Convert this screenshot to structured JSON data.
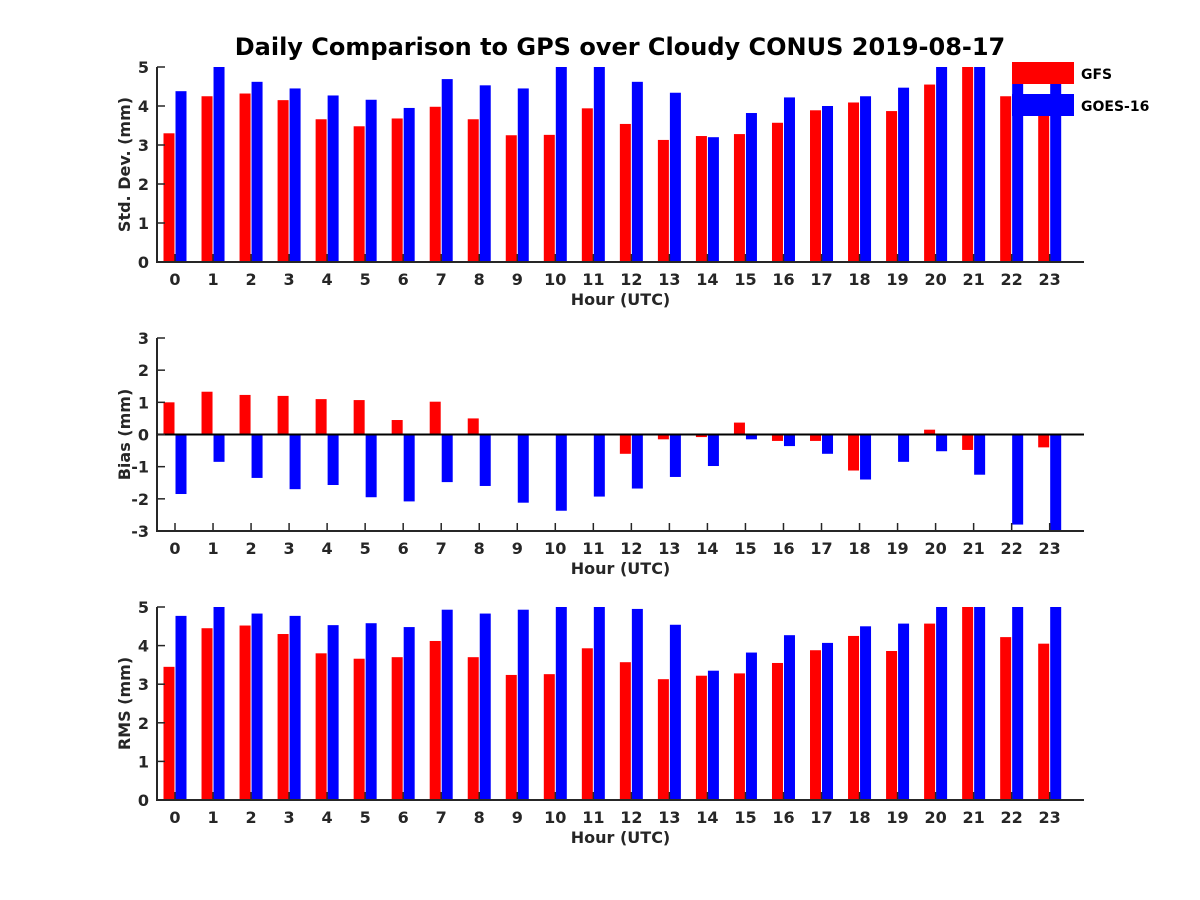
{
  "colors": {
    "GFS": "#ff0000",
    "GOES-16": "#0000ff",
    "axis": "#262626"
  },
  "chart_data": {
    "title": "Daily Comparison to GPS over Cloudy CONUS 2019-08-17",
    "legend": {
      "position": "top-right",
      "entries": [
        "GFS",
        "GOES-16"
      ]
    },
    "panels": [
      {
        "type": "bar",
        "xlabel": "Hour (UTC)",
        "ylabel": "Std. Dev. (mm)",
        "ylim": [
          0,
          5
        ],
        "yticks": [
          "0",
          "1",
          "2",
          "3",
          "4",
          "5"
        ],
        "categories": [
          "0",
          "1",
          "2",
          "3",
          "4",
          "5",
          "6",
          "7",
          "8",
          "9",
          "10",
          "11",
          "12",
          "13",
          "14",
          "15",
          "16",
          "17",
          "18",
          "19",
          "20",
          "21",
          "22",
          "23"
        ],
        "series": [
          {
            "name": "GFS",
            "values": [
              3.3,
              4.25,
              4.32,
              4.15,
              3.66,
              3.48,
              3.68,
              3.98,
              3.66,
              3.25,
              3.26,
              3.94,
              3.54,
              3.13,
              3.23,
              3.28,
              3.57,
              3.89,
              4.09,
              3.87,
              4.55,
              5.0,
              4.25,
              3.85
            ]
          },
          {
            "name": "GOES-16",
            "values": [
              4.38,
              5.0,
              4.62,
              4.45,
              4.27,
              4.16,
              3.95,
              4.69,
              4.53,
              4.45,
              5.0,
              5.0,
              4.62,
              4.34,
              3.2,
              3.82,
              4.22,
              4.0,
              4.25,
              4.47,
              5.0,
              5.0,
              5.0,
              4.6
            ]
          }
        ]
      },
      {
        "type": "bar",
        "xlabel": "Hour (UTC)",
        "ylabel": "Bias (mm)",
        "ylim": [
          -3,
          3
        ],
        "yticks": [
          "-3",
          "-2",
          "-1",
          "0",
          "1",
          "2",
          "3"
        ],
        "categories": [
          "0",
          "1",
          "2",
          "3",
          "4",
          "5",
          "6",
          "7",
          "8",
          "9",
          "10",
          "11",
          "12",
          "13",
          "14",
          "15",
          "16",
          "17",
          "18",
          "19",
          "20",
          "21",
          "22",
          "23"
        ],
        "series": [
          {
            "name": "GFS",
            "values": [
              1.0,
              1.33,
              1.23,
              1.2,
              1.1,
              1.07,
              0.45,
              1.02,
              0.5,
              0.02,
              0.0,
              0.0,
              -0.6,
              -0.15,
              -0.08,
              0.37,
              -0.2,
              -0.2,
              -1.12,
              0.02,
              0.15,
              -0.48,
              -0.03,
              -0.4
            ]
          },
          {
            "name": "GOES-16",
            "values": [
              -1.85,
              -0.85,
              -1.35,
              -1.7,
              -1.57,
              -1.95,
              -2.08,
              -1.48,
              -1.6,
              -2.12,
              -2.37,
              -1.93,
              -1.68,
              -1.32,
              -0.98,
              -0.15,
              -0.36,
              -0.6,
              -1.4,
              -0.85,
              -0.52,
              -1.25,
              -2.8,
              -3.0
            ]
          }
        ]
      },
      {
        "type": "bar",
        "xlabel": "Hour (UTC)",
        "ylabel": "RMS (mm)",
        "ylim": [
          0,
          5
        ],
        "yticks": [
          "0",
          "1",
          "2",
          "3",
          "4",
          "5"
        ],
        "categories": [
          "0",
          "1",
          "2",
          "3",
          "4",
          "5",
          "6",
          "7",
          "8",
          "9",
          "10",
          "11",
          "12",
          "13",
          "14",
          "15",
          "16",
          "17",
          "18",
          "19",
          "20",
          "21",
          "22",
          "23"
        ],
        "series": [
          {
            "name": "GFS",
            "values": [
              3.45,
              4.45,
              4.52,
              4.3,
              3.8,
              3.66,
              3.7,
              4.12,
              3.7,
              3.24,
              3.26,
              3.93,
              3.57,
              3.13,
              3.22,
              3.28,
              3.55,
              3.88,
              4.25,
              3.86,
              4.57,
              5.0,
              4.22,
              4.05
            ]
          },
          {
            "name": "GOES-16",
            "values": [
              4.77,
              5.0,
              4.83,
              4.77,
              4.53,
              4.58,
              4.48,
              4.93,
              4.83,
              4.93,
              5.0,
              5.0,
              4.95,
              4.54,
              3.35,
              3.82,
              4.27,
              4.07,
              4.5,
              4.57,
              5.0,
              5.0,
              5.0,
              5.0
            ]
          }
        ]
      }
    ]
  }
}
